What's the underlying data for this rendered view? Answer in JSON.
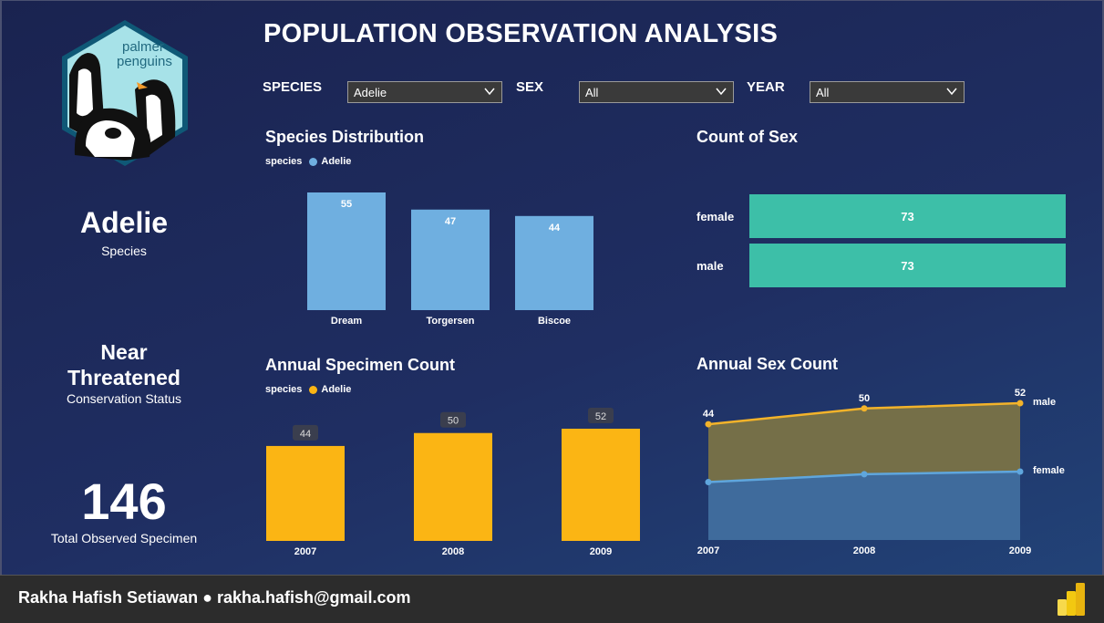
{
  "header": {
    "title": "POPULATION OBSERVATION ANALYSIS"
  },
  "logo": {
    "line1": "palmer",
    "line2": "penguins",
    "icon": "palmer-penguins-logo"
  },
  "filters": {
    "species": {
      "label": "SPECIES",
      "value": "Adelie"
    },
    "sex": {
      "label": "SEX",
      "value": "All"
    },
    "year": {
      "label": "YEAR",
      "value": "All"
    }
  },
  "kpis": {
    "species": {
      "value": "Adelie",
      "caption": "Species"
    },
    "status": {
      "line1": "Near",
      "line2": "Threatened",
      "caption": "Conservation Status"
    },
    "total": {
      "value": "146",
      "caption": "Total Observed Specimen"
    }
  },
  "panels": {
    "species_dist": {
      "title": "Species Distribution",
      "legend_label": "species",
      "legend_item": "Adelie"
    },
    "sex_count": {
      "title": "Count of Sex"
    },
    "annual_count": {
      "title": "Annual Specimen Count",
      "legend_label": "species",
      "legend_item": "Adelie"
    },
    "annual_sex": {
      "title": "Annual Sex Count"
    }
  },
  "colors": {
    "adelie_blue": "#6fafe0",
    "teal": "#3dbfa8",
    "gold": "#fbb514",
    "male_line": "#f3b32a",
    "male_area": "#756f48",
    "female_line": "#5fa6dd",
    "female_area": "#3f6b9c"
  },
  "chart_data": [
    {
      "type": "bar",
      "title": "Species Distribution",
      "legend": [
        "Adelie"
      ],
      "categories": [
        "Dream",
        "Torgersen",
        "Biscoe"
      ],
      "values": [
        55,
        47,
        44
      ],
      "ylim": [
        0,
        55
      ]
    },
    {
      "type": "bar",
      "orientation": "horizontal",
      "title": "Count of Sex",
      "categories": [
        "female",
        "male"
      ],
      "values": [
        73,
        73
      ],
      "xlim": [
        0,
        73
      ]
    },
    {
      "type": "bar",
      "title": "Annual Specimen Count",
      "legend": [
        "Adelie"
      ],
      "categories": [
        "2007",
        "2008",
        "2009"
      ],
      "values": [
        44,
        50,
        52
      ],
      "ylim": [
        0,
        52
      ]
    },
    {
      "type": "area",
      "title": "Annual Sex Count",
      "x": [
        "2007",
        "2008",
        "2009"
      ],
      "series": [
        {
          "name": "male",
          "values": [
            44,
            50,
            52
          ],
          "labels": [
            "44",
            "50",
            "52"
          ]
        },
        {
          "name": "female",
          "values": [
            22,
            25,
            26
          ]
        }
      ],
      "ylim": [
        0,
        52
      ]
    }
  ],
  "footer": {
    "credit": "Rakha Hafish Setiawan ● rakha.hafish@gmail.com",
    "icon": "power-bi-icon"
  }
}
